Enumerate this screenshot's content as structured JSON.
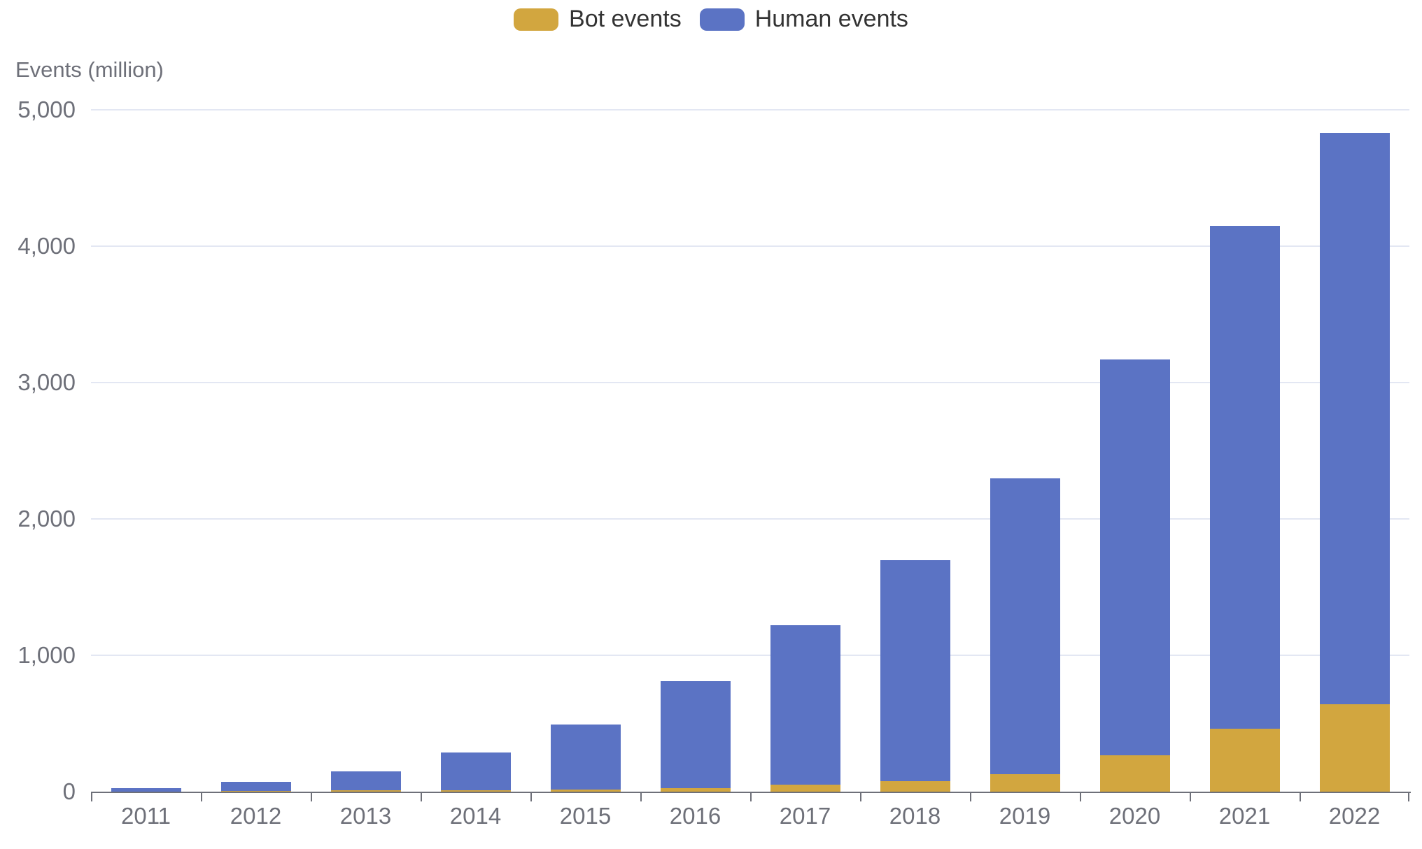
{
  "legend": {
    "items": [
      {
        "label": "Bot events",
        "color": "#D2A63F"
      },
      {
        "label": "Human events",
        "color": "#5B73C4"
      }
    ]
  },
  "chart_data": {
    "type": "bar",
    "stacked": true,
    "title": "",
    "xlabel": "",
    "ylabel": "Events (million)",
    "legend_position": "top-center",
    "grid": true,
    "ylim": [
      0,
      5000
    ],
    "yticks": [
      0,
      1000,
      2000,
      3000,
      4000,
      5000
    ],
    "ytick_labels": [
      "0",
      "1,000",
      "2,000",
      "3,000",
      "4,000",
      "5,000"
    ],
    "categories": [
      "2011",
      "2012",
      "2013",
      "2014",
      "2015",
      "2016",
      "2017",
      "2018",
      "2019",
      "2020",
      "2021",
      "2022"
    ],
    "series": [
      {
        "name": "Bot events",
        "color": "#D2A63F",
        "values": [
          2,
          4,
          8,
          10,
          15,
          25,
          50,
          75,
          130,
          265,
          460,
          640
        ]
      },
      {
        "name": "Human events",
        "color": "#5B73C4",
        "values": [
          23,
          66,
          142,
          275,
          475,
          785,
          1170,
          1625,
          2170,
          2905,
          3690,
          4190
        ]
      }
    ],
    "totals": [
      25,
      70,
      150,
      285,
      490,
      810,
      1220,
      1700,
      2300,
      3170,
      4150,
      4830
    ]
  }
}
